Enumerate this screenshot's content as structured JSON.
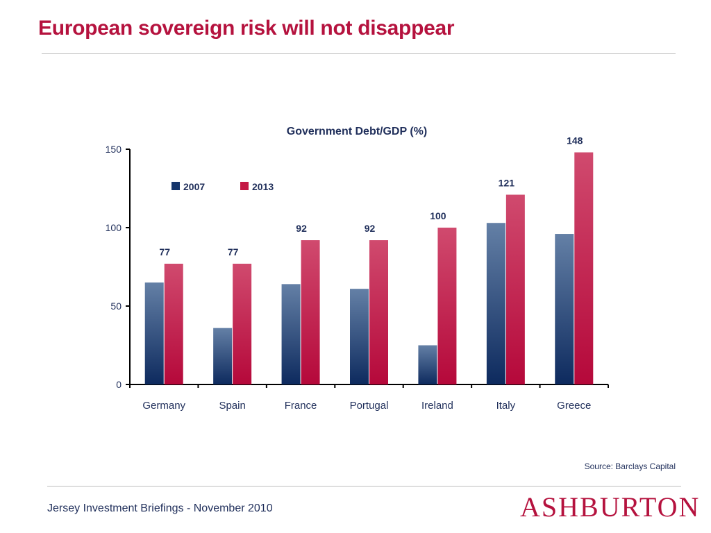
{
  "slide": {
    "title": "European sovereign risk will not disappear",
    "source": "Source: Barclays Capital",
    "footer": "Jersey Investment Briefings - November 2010",
    "logo_text": "ASHBURTON"
  },
  "colors": {
    "accent": "#b5123e",
    "text_dark": "#1f2e5a",
    "series_2007_top": "#6480a6",
    "series_2007_bottom": "#0d2a5e",
    "series_2013_top": "#d04a6e",
    "series_2013_bottom": "#b5083a",
    "legend_2007": "#15356b",
    "legend_2013": "#c41945"
  },
  "chart_data": {
    "type": "bar",
    "title": "Government Debt/GDP (%)",
    "categories": [
      "Germany",
      "Spain",
      "France",
      "Portugal",
      "Ireland",
      "Italy",
      "Greece"
    ],
    "series": [
      {
        "name": "2007",
        "values": [
          65,
          36,
          64,
          61,
          25,
          103,
          96
        ]
      },
      {
        "name": "2013",
        "values": [
          77,
          77,
          92,
          92,
          100,
          121,
          148
        ]
      }
    ],
    "data_labels_2013": [
      "77",
      "77",
      "92",
      "92",
      "100",
      "121",
      "148"
    ],
    "ylim": [
      0,
      150
    ],
    "yticks": [
      0,
      50,
      100,
      150
    ],
    "xlabel": "",
    "ylabel": "",
    "legend_position": "top-left",
    "grid": false
  }
}
